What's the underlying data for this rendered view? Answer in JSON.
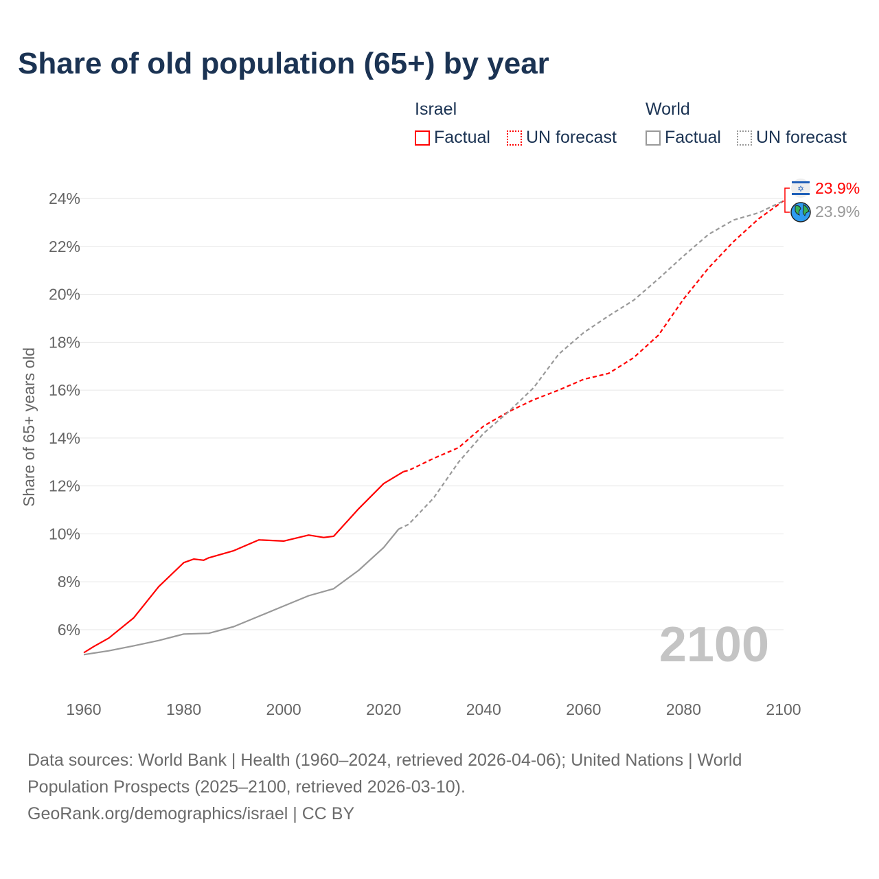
{
  "title": "Share of old population (65+) by year",
  "legend": {
    "groups": [
      {
        "name": "Israel",
        "factual": "Factual",
        "forecast": "UN forecast",
        "color": "#ff0000"
      },
      {
        "name": "World",
        "factual": "Factual",
        "forecast": "UN forecast",
        "color": "#999999"
      }
    ]
  },
  "year_watermark": "2100",
  "end_labels": {
    "israel": "23.9%",
    "world": "23.9%",
    "israel_icon": "israel-flag-icon",
    "world_icon": "globe-icon"
  },
  "footer": {
    "sources": "Data sources: World Bank | Health (1960–2024, retrieved 2026-04-06); United Nations | World Population Prospects (2025–2100, retrieved 2026-03-10).",
    "credit": "GeoRank.org/demographics/israel | CC BY"
  },
  "chart_data": {
    "type": "line",
    "title": "Share of old population (65+) by year",
    "xlabel": "",
    "ylabel": "Share of 65+ years old",
    "xlim": [
      1960,
      2100
    ],
    "ylim": [
      4,
      25
    ],
    "x_ticks": [
      1960,
      1980,
      2000,
      2020,
      2040,
      2060,
      2080,
      2100
    ],
    "x_tick_labels": [
      "1960",
      "1980",
      "2000",
      "2020",
      "2040",
      "2060",
      "2080",
      "2100"
    ],
    "y_ticks": [
      6,
      8,
      10,
      12,
      14,
      16,
      18,
      20,
      22,
      24
    ],
    "y_tick_labels": [
      "6%",
      "8%",
      "10%",
      "12%",
      "14%",
      "16%",
      "18%",
      "20%",
      "22%",
      "24%"
    ],
    "grid": true,
    "legend_position": "top-right",
    "series": [
      {
        "name": "Israel Factual",
        "color": "#ff0000",
        "dashed": false,
        "x": [
          1960,
          1962,
          1965,
          1970,
          1975,
          1980,
          1982,
          1984,
          1985,
          1990,
          1995,
          2000,
          2005,
          2008,
          2010,
          2015,
          2020,
          2024
        ],
        "y": [
          5.04,
          5.3,
          5.65,
          6.5,
          7.8,
          8.8,
          8.95,
          8.9,
          9.0,
          9.3,
          9.75,
          9.7,
          9.95,
          9.85,
          9.9,
          11.05,
          12.1,
          12.6
        ]
      },
      {
        "name": "Israel UN forecast",
        "color": "#ff0000",
        "dashed": true,
        "x": [
          2024,
          2025,
          2030,
          2035,
          2040,
          2045,
          2050,
          2055,
          2060,
          2065,
          2070,
          2075,
          2080,
          2085,
          2090,
          2095,
          2100
        ],
        "y": [
          12.6,
          12.65,
          13.15,
          13.6,
          14.5,
          15.1,
          15.6,
          16.0,
          16.45,
          16.7,
          17.35,
          18.3,
          19.8,
          21.1,
          22.2,
          23.15,
          23.9
        ]
      },
      {
        "name": "World Factual",
        "color": "#999999",
        "dashed": false,
        "x": [
          1960,
          1965,
          1970,
          1975,
          1980,
          1985,
          1990,
          1995,
          2000,
          2005,
          2010,
          2015,
          2020,
          2023
        ],
        "y": [
          4.96,
          5.12,
          5.33,
          5.55,
          5.82,
          5.85,
          6.13,
          6.56,
          6.99,
          7.42,
          7.71,
          8.48,
          9.43,
          10.2
        ]
      },
      {
        "name": "World UN forecast",
        "color": "#999999",
        "dashed": true,
        "x": [
          2023,
          2025,
          2030,
          2035,
          2040,
          2045,
          2050,
          2055,
          2060,
          2065,
          2070,
          2075,
          2080,
          2085,
          2090,
          2095,
          2100
        ],
        "y": [
          10.2,
          10.4,
          11.5,
          13.0,
          14.2,
          15.1,
          16.1,
          17.5,
          18.4,
          19.1,
          19.75,
          20.65,
          21.6,
          22.5,
          23.1,
          23.4,
          23.9
        ]
      }
    ]
  }
}
